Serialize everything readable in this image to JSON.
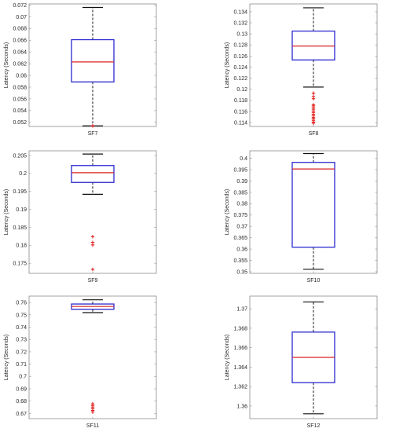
{
  "colors": {
    "box": "#2a2ad0",
    "median": "#d92020",
    "whisker": "#111111",
    "outlier": "#e01010",
    "axes": "#8c8c8c",
    "background": "#ffffff"
  },
  "chart_data": [
    {
      "type": "box",
      "category": "SF7",
      "ylabel": "Latency (Seconds)",
      "ylim": [
        0.0513,
        0.0722
      ],
      "yticks": [
        0.052,
        0.054,
        0.056,
        0.058,
        0.06,
        0.062,
        0.064,
        0.066,
        0.068,
        0.07,
        0.072
      ],
      "ytick_labels": [
        "0.052",
        "0.054",
        "0.056",
        "0.058",
        "0.06",
        "0.062",
        "0.064",
        "0.066",
        "0.068",
        "0.07",
        "0.072"
      ],
      "whisker_low": 0.0514,
      "q1": 0.0589,
      "median": 0.0623,
      "q3": 0.0661,
      "whisker_high": 0.0716,
      "outliers": [
        0.0514,
        0.0514
      ]
    },
    {
      "type": "box",
      "category": "SF8",
      "ylabel": "Latency (Seconds)",
      "ylim": [
        0.1133,
        0.1354
      ],
      "yticks": [
        0.114,
        0.116,
        0.118,
        0.12,
        0.122,
        0.124,
        0.126,
        0.128,
        0.13,
        0.132,
        0.134
      ],
      "ytick_labels": [
        "0.114",
        "0.116",
        "0.118",
        "0.12",
        "0.122",
        "0.124",
        "0.126",
        "0.128",
        "0.13",
        "0.132",
        "0.134"
      ],
      "whisker_low": 0.1204,
      "q1": 0.1253,
      "median": 0.1278,
      "q3": 0.1305,
      "whisker_high": 0.1347,
      "outliers": [
        0.1193,
        0.1187,
        0.1183,
        0.1172,
        0.117,
        0.1167,
        0.1164,
        0.1161,
        0.1158,
        0.1155,
        0.1152,
        0.1149,
        0.1147,
        0.1144,
        0.1141,
        0.1139
      ]
    },
    {
      "type": "box",
      "category": "SF9",
      "ylabel": "Latency (Seconds)",
      "ylim": [
        0.1722,
        0.2063
      ],
      "yticks": [
        0.175,
        0.18,
        0.185,
        0.19,
        0.195,
        0.2,
        0.205
      ],
      "ytick_labels": [
        "0.175",
        "0.18",
        "0.185",
        "0.19",
        "0.195",
        "0.2",
        "0.205"
      ],
      "whisker_low": 0.1942,
      "q1": 0.1975,
      "median": 0.2002,
      "q3": 0.2022,
      "whisker_high": 0.2054,
      "outliers": [
        0.1824,
        0.1808,
        0.1801,
        0.1733
      ]
    },
    {
      "type": "box",
      "category": "SF10",
      "ylabel": "Latency (Seconds)",
      "ylim": [
        0.3493,
        0.4033
      ],
      "yticks": [
        0.35,
        0.355,
        0.36,
        0.365,
        0.37,
        0.375,
        0.38,
        0.385,
        0.39,
        0.395,
        0.4
      ],
      "ytick_labels": [
        "0.35",
        "0.355",
        "0.36",
        "0.365",
        "0.37",
        "0.375",
        "0.38",
        "0.385",
        "0.39",
        "0.395",
        "0.4"
      ],
      "whisker_low": 0.3511,
      "q1": 0.3608,
      "median": 0.3953,
      "q3": 0.3982,
      "whisker_high": 0.4021,
      "outliers": []
    },
    {
      "type": "box",
      "category": "SF11",
      "ylabel": "Latency (Seconds)",
      "ylim": [
        0.6658,
        0.7652
      ],
      "yticks": [
        0.67,
        0.68,
        0.69,
        0.7,
        0.71,
        0.72,
        0.73,
        0.74,
        0.75,
        0.76
      ],
      "ytick_labels": [
        "0.67",
        "0.68",
        "0.69",
        "0.7",
        "0.71",
        "0.72",
        "0.73",
        "0.74",
        "0.75",
        "0.76"
      ],
      "whisker_low": 0.7518,
      "q1": 0.7545,
      "median": 0.7568,
      "q3": 0.7588,
      "whisker_high": 0.7622,
      "outliers": [
        0.6778,
        0.6765,
        0.6752,
        0.6738,
        0.6725,
        0.6712
      ]
    },
    {
      "type": "box",
      "category": "SF12",
      "ylabel": "Latency (Seconds)",
      "ylim": [
        1.3587,
        1.3713
      ],
      "yticks": [
        1.36,
        1.362,
        1.364,
        1.366,
        1.368,
        1.37
      ],
      "ytick_labels": [
        "1.36",
        "1.362",
        "1.364",
        "1.366",
        "1.368",
        "1.37"
      ],
      "whisker_low": 1.3592,
      "q1": 1.3624,
      "median": 1.365,
      "q3": 1.3676,
      "whisker_high": 1.3707,
      "outliers": []
    }
  ]
}
